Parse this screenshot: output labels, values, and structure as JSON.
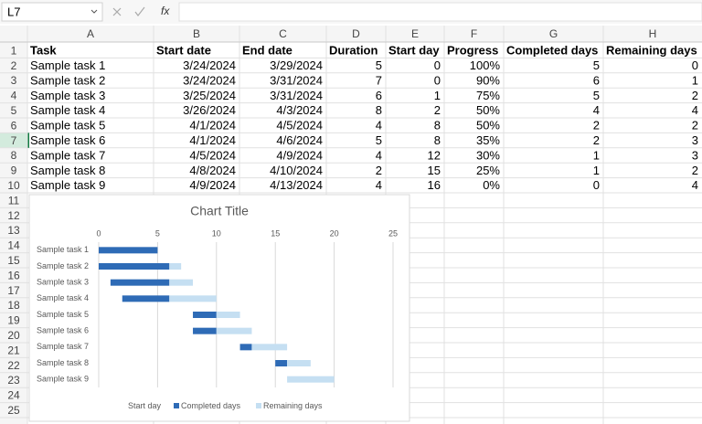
{
  "name_box": "L7",
  "formula_bar": {
    "function_label": "fx"
  },
  "sheet": {
    "columns": [
      "A",
      "B",
      "C",
      "D",
      "E",
      "F",
      "G",
      "H"
    ],
    "row_numbers": [
      1,
      2,
      3,
      4,
      5,
      6,
      7,
      8,
      9,
      10,
      11,
      12,
      13,
      14,
      15,
      16,
      17,
      18,
      19,
      20,
      21,
      22,
      23,
      24,
      25
    ]
  },
  "table": {
    "rows": [
      [
        "Task",
        "Start date",
        "End date",
        "Duration",
        "Start day",
        "Progress",
        "Completed days",
        "Remaining days"
      ],
      [
        "Sample task 1",
        "3/24/2024",
        "3/29/2024",
        "5",
        "0",
        "100%",
        "5",
        "0"
      ],
      [
        "Sample task 2",
        "3/24/2024",
        "3/31/2024",
        "7",
        "0",
        "90%",
        "6",
        "1"
      ],
      [
        "Sample task 3",
        "3/25/2024",
        "3/31/2024",
        "6",
        "1",
        "75%",
        "5",
        "2"
      ],
      [
        "Sample task 4",
        "3/26/2024",
        "4/3/2024",
        "8",
        "2",
        "50%",
        "4",
        "4"
      ],
      [
        "Sample task 5",
        "4/1/2024",
        "4/5/2024",
        "4",
        "8",
        "50%",
        "2",
        "2"
      ],
      [
        "Sample task 6",
        "4/1/2024",
        "4/6/2024",
        "5",
        "8",
        "35%",
        "2",
        "3"
      ],
      [
        "Sample task 7",
        "4/5/2024",
        "4/9/2024",
        "4",
        "12",
        "30%",
        "1",
        "3"
      ],
      [
        "Sample task 8",
        "4/8/2024",
        "4/10/2024",
        "2",
        "15",
        "25%",
        "1",
        "2"
      ],
      [
        "Sample task 9",
        "4/9/2024",
        "4/13/2024",
        "4",
        "16",
        "0%",
        "0",
        "4"
      ]
    ]
  },
  "chart_data": {
    "type": "stacked_bar_horizontal",
    "title": "Chart Title",
    "categories": [
      "Sample task 1",
      "Sample task 2",
      "Sample task 3",
      "Sample task 4",
      "Sample task 5",
      "Sample task 6",
      "Sample task 7",
      "Sample task 8",
      "Sample task 9"
    ],
    "series": [
      {
        "name": "Start day",
        "values": [
          0,
          0,
          1,
          2,
          8,
          8,
          12,
          15,
          16
        ]
      },
      {
        "name": "Completed days",
        "color": "#2e6bb6",
        "values": [
          5,
          6,
          5,
          4,
          2,
          2,
          1,
          1,
          0
        ]
      },
      {
        "name": "Remaining days",
        "color": "#c5dff2",
        "values": [
          0,
          1,
          2,
          4,
          2,
          3,
          3,
          2,
          4
        ]
      }
    ],
    "xlim": [
      0,
      25
    ],
    "xticks": [
      0,
      5,
      10,
      15,
      20,
      25
    ],
    "grid": true,
    "legend": "bottom"
  }
}
